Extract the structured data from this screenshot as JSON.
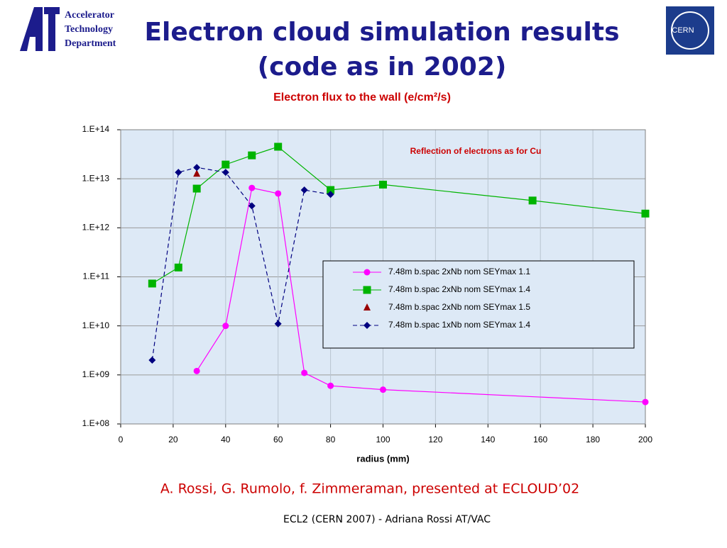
{
  "header": {
    "title_lines": [
      "Electron cloud simulation results",
      "(code as in 2002)"
    ]
  },
  "logos": {
    "left": [
      "Accelerator",
      "Technology",
      "Department"
    ],
    "right": "CERN"
  },
  "citation": "A. Rossi, G. Rumolo, f. Zimmeraman, presented at ECLOUD’02",
  "footer": "ECL2 (CERN 2007) - Adriana Rossi AT/VAC",
  "chart_data": {
    "type": "line",
    "title": "Electron flux to the wall (e/cm²/s)",
    "annotation": "Reflection of electrons as for Cu",
    "xlabel": "radius (mm)",
    "xlim": [
      0,
      200
    ],
    "xticks": [
      0,
      20,
      40,
      60,
      80,
      100,
      120,
      140,
      160,
      180,
      200
    ],
    "ylim": [
      100000000,
      100000000000000
    ],
    "yscale": "log",
    "yticks": [
      {
        "value": 100000000,
        "label": "1.E+08"
      },
      {
        "value": 1000000000,
        "label": "1.E+09"
      },
      {
        "value": 10000000000,
        "label": "1.E+10"
      },
      {
        "value": 100000000000,
        "label": "1.E+11"
      },
      {
        "value": 1000000000000,
        "label": "1.E+12"
      },
      {
        "value": 10000000000000,
        "label": "1.E+13"
      },
      {
        "value": 100000000000000,
        "label": "1.E+14"
      }
    ],
    "grid": true,
    "legend": "right",
    "series": [
      {
        "name": "7.48m b.spac 2xNb nom SEYmax 1.1",
        "color": "#ff00ff",
        "marker": "circle",
        "line_style": "solid",
        "x": [
          29,
          40,
          50,
          60,
          70,
          80,
          100,
          200
        ],
        "values": [
          1200000000,
          10000000000,
          6500000000000,
          5000000000000,
          1100000000,
          600000000,
          500000000,
          280000000
        ]
      },
      {
        "name": "7.48m b.spac 2xNb nom SEYmax 1.4",
        "color": "#00b400",
        "marker": "square",
        "line_style": "solid",
        "x": [
          12,
          22,
          29,
          40,
          50,
          60,
          80,
          100,
          157,
          200
        ],
        "values": [
          73000000000,
          155000000000,
          6300000000000,
          19500000000000,
          30000000000000,
          45000000000000,
          5900000000000,
          7600000000000,
          3600000000000,
          1950000000000
        ]
      },
      {
        "name": "7.48m b.spac 2xNb nom SEYmax 1.5",
        "color": "#990000",
        "marker": "triangle",
        "line_style": "none",
        "x": [
          29
        ],
        "values": [
          12600000000000
        ]
      },
      {
        "name": "7.48m b.spac 1xNb nom SEYmax 1.4",
        "color": "#000080",
        "marker": "diamond",
        "line_style": "dashed",
        "x": [
          12,
          22,
          29,
          40,
          50,
          60,
          70,
          80
        ],
        "values": [
          2000000000,
          13500000000000,
          17000000000000,
          13500000000000,
          2800000000000,
          11000000000,
          5900000000000,
          4800000000000
        ]
      }
    ]
  }
}
